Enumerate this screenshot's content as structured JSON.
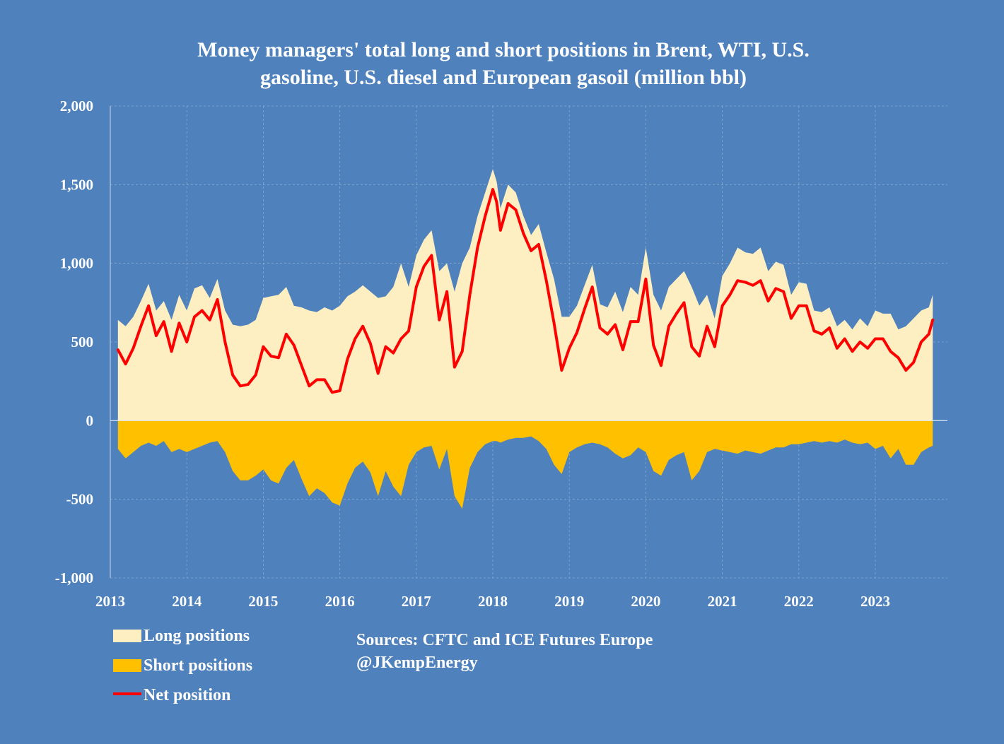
{
  "chart_data": {
    "type": "area",
    "title_lines": [
      "Money managers' total long and short positions in Brent, WTI, U.S.",
      "gasoline, U.S. diesel and European gasoil  (million bbl)"
    ],
    "xlabel": "",
    "ylabel": "",
    "xlim": [
      2013.0,
      2023.9
    ],
    "ylim": [
      -1000,
      2000
    ],
    "y_ticks": [
      2000,
      1500,
      1000,
      500,
      0,
      -500,
      -1000
    ],
    "y_tick_labels": [
      "2,000",
      "1,500",
      "1,000",
      "500",
      "0",
      "-500",
      "-1,000"
    ],
    "x_ticks": [
      2013,
      2014,
      2015,
      2016,
      2017,
      2018,
      2019,
      2020,
      2021,
      2022,
      2023
    ],
    "x_tick_labels": [
      "2013",
      "2014",
      "2015",
      "2016",
      "2017",
      "2018",
      "2019",
      "2020",
      "2021",
      "2022",
      "2023"
    ],
    "grid": true,
    "legend_position": "bottom-left",
    "colors": {
      "background": "#4f81bd",
      "long": "#fdefc2",
      "short": "#ffc000",
      "net": "#ff0000",
      "text": "#ffffff"
    },
    "series": [
      {
        "name": "Long positions",
        "kind": "area",
        "x": [
          2013.1,
          2013.2,
          2013.3,
          2013.4,
          2013.5,
          2013.6,
          2013.7,
          2013.8,
          2013.9,
          2014.0,
          2014.1,
          2014.2,
          2014.3,
          2014.4,
          2014.5,
          2014.6,
          2014.7,
          2014.8,
          2014.9,
          2015.0,
          2015.1,
          2015.2,
          2015.3,
          2015.4,
          2015.5,
          2015.6,
          2015.7,
          2015.8,
          2015.9,
          2016.0,
          2016.1,
          2016.2,
          2016.3,
          2016.4,
          2016.5,
          2016.6,
          2016.7,
          2016.8,
          2016.9,
          2017.0,
          2017.1,
          2017.2,
          2017.3,
          2017.4,
          2017.5,
          2017.6,
          2017.7,
          2017.8,
          2017.9,
          2018.0,
          2018.05,
          2018.1,
          2018.2,
          2018.3,
          2018.4,
          2018.5,
          2018.6,
          2018.7,
          2018.8,
          2018.9,
          2019.0,
          2019.1,
          2019.2,
          2019.3,
          2019.4,
          2019.5,
          2019.6,
          2019.7,
          2019.8,
          2019.9,
          2020.0,
          2020.1,
          2020.2,
          2020.3,
          2020.4,
          2020.5,
          2020.6,
          2020.7,
          2020.8,
          2020.9,
          2021.0,
          2021.1,
          2021.2,
          2021.3,
          2021.4,
          2021.5,
          2021.6,
          2021.7,
          2021.8,
          2021.9,
          2022.0,
          2022.1,
          2022.2,
          2022.3,
          2022.4,
          2022.5,
          2022.6,
          2022.7,
          2022.8,
          2022.9,
          2023.0,
          2023.1,
          2023.2,
          2023.3,
          2023.4,
          2023.5,
          2023.6,
          2023.7,
          2023.75
        ],
        "values": [
          640,
          600,
          660,
          760,
          870,
          700,
          760,
          640,
          800,
          700,
          840,
          860,
          780,
          900,
          700,
          610,
          600,
          610,
          640,
          780,
          790,
          800,
          850,
          730,
          720,
          700,
          690,
          720,
          700,
          730,
          790,
          820,
          860,
          820,
          780,
          790,
          850,
          1000,
          850,
          1050,
          1150,
          1210,
          950,
          1000,
          820,
          1000,
          1100,
          1300,
          1450,
          1600,
          1520,
          1350,
          1500,
          1450,
          1300,
          1180,
          1250,
          1070,
          900,
          660,
          660,
          730,
          860,
          990,
          740,
          720,
          820,
          690,
          850,
          800,
          1100,
          800,
          700,
          850,
          900,
          950,
          850,
          730,
          800,
          650,
          920,
          1000,
          1100,
          1070,
          1060,
          1100,
          950,
          1010,
          990,
          800,
          880,
          870,
          700,
          690,
          720,
          600,
          640,
          580,
          650,
          600,
          700,
          680,
          680,
          580,
          600,
          650,
          700,
          720,
          800
        ]
      },
      {
        "name": "Short positions",
        "kind": "area",
        "x": [
          2013.1,
          2013.2,
          2013.3,
          2013.4,
          2013.5,
          2013.6,
          2013.7,
          2013.8,
          2013.9,
          2014.0,
          2014.1,
          2014.2,
          2014.3,
          2014.4,
          2014.5,
          2014.6,
          2014.7,
          2014.8,
          2014.9,
          2015.0,
          2015.1,
          2015.2,
          2015.3,
          2015.4,
          2015.5,
          2015.6,
          2015.7,
          2015.8,
          2015.9,
          2016.0,
          2016.1,
          2016.2,
          2016.3,
          2016.4,
          2016.5,
          2016.6,
          2016.7,
          2016.8,
          2016.9,
          2017.0,
          2017.1,
          2017.2,
          2017.3,
          2017.4,
          2017.5,
          2017.6,
          2017.7,
          2017.8,
          2017.9,
          2018.0,
          2018.05,
          2018.1,
          2018.2,
          2018.3,
          2018.4,
          2018.5,
          2018.6,
          2018.7,
          2018.8,
          2018.9,
          2019.0,
          2019.1,
          2019.2,
          2019.3,
          2019.4,
          2019.5,
          2019.6,
          2019.7,
          2019.8,
          2019.9,
          2020.0,
          2020.1,
          2020.2,
          2020.3,
          2020.4,
          2020.5,
          2020.6,
          2020.7,
          2020.8,
          2020.9,
          2021.0,
          2021.1,
          2021.2,
          2021.3,
          2021.4,
          2021.5,
          2021.6,
          2021.7,
          2021.8,
          2021.9,
          2022.0,
          2022.1,
          2022.2,
          2022.3,
          2022.4,
          2022.5,
          2022.6,
          2022.7,
          2022.8,
          2022.9,
          2023.0,
          2023.1,
          2023.2,
          2023.3,
          2023.4,
          2023.5,
          2023.6,
          2023.7,
          2023.75
        ],
        "values": [
          -180,
          -240,
          -200,
          -160,
          -140,
          -160,
          -130,
          -200,
          -180,
          -200,
          -180,
          -160,
          -140,
          -130,
          -200,
          -320,
          -380,
          -380,
          -350,
          -310,
          -380,
          -400,
          -300,
          -250,
          -370,
          -480,
          -430,
          -460,
          -520,
          -540,
          -400,
          -300,
          -260,
          -330,
          -480,
          -320,
          -420,
          -480,
          -280,
          -200,
          -170,
          -160,
          -310,
          -180,
          -480,
          -560,
          -300,
          -200,
          -150,
          -130,
          -130,
          -140,
          -120,
          -110,
          -110,
          -100,
          -130,
          -180,
          -280,
          -340,
          -200,
          -170,
          -150,
          -140,
          -150,
          -170,
          -210,
          -240,
          -220,
          -170,
          -200,
          -320,
          -350,
          -250,
          -220,
          -200,
          -380,
          -320,
          -200,
          -180,
          -190,
          -200,
          -210,
          -190,
          -200,
          -210,
          -190,
          -170,
          -170,
          -150,
          -150,
          -140,
          -130,
          -140,
          -130,
          -140,
          -120,
          -140,
          -150,
          -140,
          -180,
          -160,
          -240,
          -180,
          -280,
          -280,
          -200,
          -170,
          -160
        ]
      },
      {
        "name": "Net position",
        "kind": "line",
        "x": [
          2013.1,
          2013.2,
          2013.3,
          2013.4,
          2013.5,
          2013.6,
          2013.7,
          2013.8,
          2013.9,
          2014.0,
          2014.1,
          2014.2,
          2014.3,
          2014.4,
          2014.5,
          2014.6,
          2014.7,
          2014.8,
          2014.9,
          2015.0,
          2015.1,
          2015.2,
          2015.3,
          2015.4,
          2015.5,
          2015.6,
          2015.7,
          2015.8,
          2015.9,
          2016.0,
          2016.1,
          2016.2,
          2016.3,
          2016.4,
          2016.5,
          2016.6,
          2016.7,
          2016.8,
          2016.9,
          2017.0,
          2017.1,
          2017.2,
          2017.3,
          2017.4,
          2017.5,
          2017.6,
          2017.7,
          2017.8,
          2017.9,
          2018.0,
          2018.05,
          2018.1,
          2018.2,
          2018.3,
          2018.4,
          2018.5,
          2018.6,
          2018.7,
          2018.8,
          2018.9,
          2019.0,
          2019.1,
          2019.2,
          2019.3,
          2019.4,
          2019.5,
          2019.6,
          2019.7,
          2019.8,
          2019.9,
          2020.0,
          2020.1,
          2020.2,
          2020.3,
          2020.4,
          2020.5,
          2020.6,
          2020.7,
          2020.8,
          2020.9,
          2021.0,
          2021.1,
          2021.2,
          2021.3,
          2021.4,
          2021.5,
          2021.6,
          2021.7,
          2021.8,
          2021.9,
          2022.0,
          2022.1,
          2022.2,
          2022.3,
          2022.4,
          2022.5,
          2022.6,
          2022.7,
          2022.8,
          2022.9,
          2023.0,
          2023.1,
          2023.2,
          2023.3,
          2023.4,
          2023.5,
          2023.6,
          2023.7,
          2023.75
        ],
        "values": [
          450,
          360,
          460,
          600,
          730,
          540,
          630,
          440,
          620,
          500,
          660,
          700,
          640,
          770,
          500,
          290,
          220,
          230,
          290,
          470,
          410,
          400,
          550,
          480,
          350,
          220,
          260,
          260,
          180,
          190,
          390,
          520,
          600,
          490,
          300,
          470,
          430,
          520,
          570,
          850,
          980,
          1050,
          640,
          820,
          340,
          440,
          800,
          1100,
          1300,
          1470,
          1390,
          1210,
          1380,
          1340,
          1190,
          1080,
          1120,
          890,
          620,
          320,
          460,
          560,
          710,
          850,
          590,
          550,
          610,
          450,
          630,
          630,
          900,
          480,
          350,
          600,
          680,
          750,
          470,
          410,
          600,
          470,
          730,
          800,
          890,
          880,
          860,
          890,
          760,
          840,
          820,
          650,
          730,
          730,
          570,
          550,
          590,
          460,
          520,
          440,
          500,
          460,
          520,
          520,
          440,
          400,
          320,
          370,
          500,
          550,
          640
        ]
      }
    ],
    "legend": [
      "Long positions",
      "Short positions",
      "Net position"
    ],
    "annotations": [
      "Sources: CFTC and ICE Futures Europe",
      "@JKempEnergy"
    ]
  }
}
